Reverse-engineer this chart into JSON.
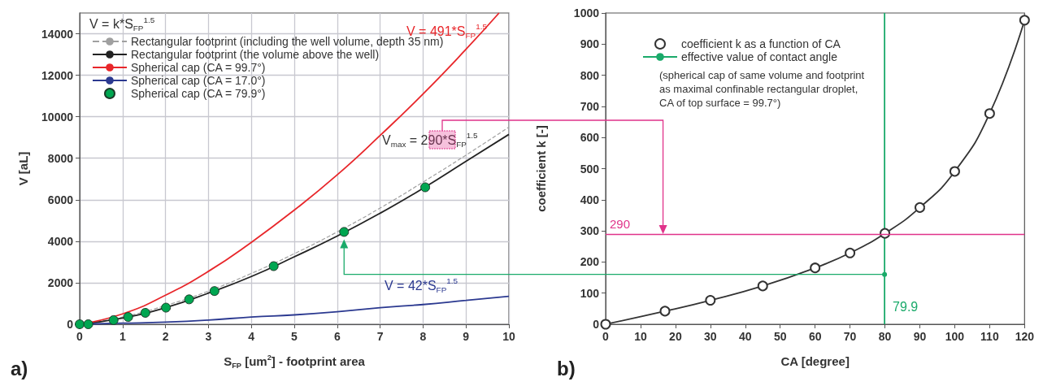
{
  "chart_data": [
    {
      "type": "line",
      "xlabel": "S$_{FP}$ [um$^{2}$] - footprint area",
      "ylabel": "V [aL]",
      "legend_title": "V = k*S$_{FP}$$^{1.5}$",
      "xlim": [
        0,
        10
      ],
      "ylim": [
        0,
        15000
      ],
      "xticks": [
        0,
        1,
        2,
        3,
        4,
        5,
        6,
        7,
        8,
        9,
        10
      ],
      "yticks": [
        0,
        2000,
        4000,
        6000,
        8000,
        10000,
        12000,
        14000
      ],
      "grid": true,
      "legend": "top left",
      "series": [
        {
          "name": "Rectangular footprint (including the well volume, depth 35 nm)",
          "type": "line",
          "color": "#a0a0a0",
          "line_style": "dashed",
          "marker": "none",
          "x": [
            0,
            1,
            2,
            3,
            4,
            5,
            6,
            7,
            8,
            9,
            10
          ],
          "values": [
            0,
            350,
            900,
            1600,
            2450,
            3400,
            4450,
            5600,
            6850,
            8150,
            9500
          ]
        },
        {
          "name": "Rectangular footprint (the volume above the well)",
          "type": "line",
          "color": "#222222",
          "line_style": "solid",
          "marker": "none",
          "x": [
            0,
            1,
            2,
            3,
            4,
            5,
            6,
            7,
            8,
            9,
            10
          ],
          "values": [
            0,
            300,
            800,
            1500,
            2300,
            3250,
            4250,
            5350,
            6550,
            7850,
            9150
          ]
        },
        {
          "name": "Spherical cap (CA = 99.7°)",
          "type": "line",
          "color": "#e8262a",
          "line_style": "solid",
          "marker": "none",
          "x": [
            0,
            1,
            2,
            3,
            4,
            5,
            6,
            7,
            8,
            9,
            9.77
          ],
          "values": [
            0,
            500,
            1400,
            2550,
            3950,
            5500,
            7200,
            9100,
            11100,
            13250,
            15000
          ]
        },
        {
          "name": "Spherical cap (CA = 17.0°)",
          "type": "line",
          "color": "#2b3990",
          "line_style": "solid",
          "marker": "none",
          "x": [
            0,
            1,
            2,
            3,
            4,
            5,
            6,
            7,
            8,
            9,
            10
          ],
          "values": [
            0,
            50,
            100,
            200,
            350,
            450,
            600,
            800,
            950,
            1150,
            1350
          ]
        },
        {
          "name": "Spherical cap (CA = 79.9°)",
          "type": "scatter",
          "color": "#00a651",
          "marker": "circle",
          "x": [
            0,
            0.2,
            0.79,
            1.13,
            1.53,
            2.01,
            2.55,
            3.14,
            4.52,
            6.16,
            8.05
          ],
          "values": [
            0,
            0,
            200,
            350,
            550,
            800,
            1200,
            1600,
            2800,
            4450,
            6600
          ]
        }
      ],
      "annotations": [
        "V = 491*S$_{FP}$$^{1.5}$",
        "V$_{max}$ = 290*S$_{FP}$$^{1.5}$",
        "V = 42*S$_{FP}$$^{1.5}$",
        "a)"
      ]
    },
    {
      "type": "line",
      "xlabel": "CA [degree]",
      "ylabel": "coefficient k [-]",
      "xlim": [
        0,
        120
      ],
      "ylim": [
        0,
        1000
      ],
      "xticks": [
        0,
        10,
        20,
        30,
        40,
        50,
        60,
        70,
        80,
        90,
        100,
        110,
        120
      ],
      "yticks": [
        0,
        100,
        200,
        300,
        400,
        500,
        600,
        700,
        800,
        900,
        1000
      ],
      "grid": false,
      "legend": "top left",
      "series": [
        {
          "name": "coefficient k as a function of CA",
          "type": "line",
          "color": "#333333",
          "line_style": "solid",
          "marker": "circle",
          "x": [
            0,
            17,
            30,
            45,
            60,
            70,
            80,
            90,
            100,
            110,
            120
          ],
          "values": [
            0,
            42,
            77,
            123,
            181,
            229,
            292,
            375,
            491,
            677,
            977
          ]
        },
        {
          "name": "effective value of contact angle",
          "type": "line",
          "color": "#1aaa6a",
          "line_style": "solid",
          "marker": "none",
          "x": [
            79.9,
            79.9
          ],
          "values": [
            0,
            1000
          ]
        }
      ],
      "ref_lines": [
        {
          "axis": "y",
          "value": 290,
          "label": "290",
          "color": "#e0338a"
        }
      ],
      "annotations": [
        {
          "text": "79.9",
          "x": 79.9,
          "y": 55
        },
        "(spherical cap of same volume and footprint\nas maximal confinable rectangular droplet,\nCA of top surface = 99.7°)",
        "b)"
      ]
    }
  ]
}
